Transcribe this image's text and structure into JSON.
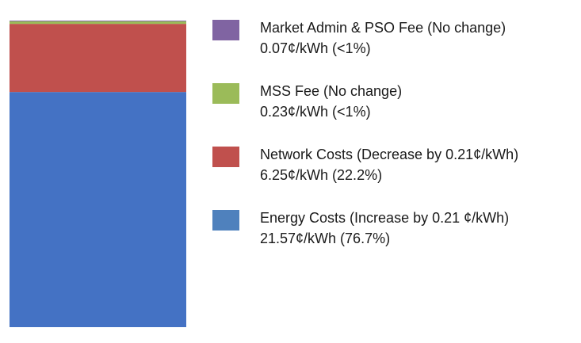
{
  "chart_data": {
    "type": "bar",
    "stacked": true,
    "unit": "¢/kWh",
    "categories": [
      ""
    ],
    "series": [
      {
        "name": "Energy Costs (Increase by 0.21 ¢/kWh)",
        "value_label": "21.57¢/kWh (76.7%)",
        "values": [
          21.57
        ],
        "color": "#4472C4",
        "legend_color": "#4F81BD"
      },
      {
        "name": "Network Costs (Decrease by 0.21¢/kWh)",
        "value_label": "6.25¢/kWh (22.2%)",
        "values": [
          6.25
        ],
        "color": "#C0504D",
        "legend_color": "#C0504D"
      },
      {
        "name": "MSS Fee (No change)",
        "value_label": "0.23¢/kWh (<1%)",
        "values": [
          0.23
        ],
        "color": "#9BBB59",
        "legend_color": "#9BBB59"
      },
      {
        "name": "Market Admin & PSO Fee (No change)",
        "value_label": "0.07¢/kWh (<1%)",
        "values": [
          0.07
        ],
        "color": "#8064A2",
        "legend_color": "#8064A2"
      }
    ],
    "legend_order": [
      3,
      2,
      1,
      0
    ],
    "legend_position": "right",
    "grid": false,
    "axes_visible": false
  }
}
